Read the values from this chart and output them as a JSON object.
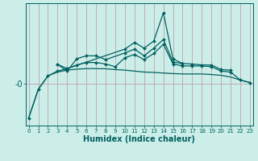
{
  "xlabel": "Humidex (Indice chaleur)",
  "bg_color": "#cceee8",
  "line_color": "#006060",
  "grid_color_v": "#c0a0b0",
  "grid_color_h": "#c0a0b0",
  "x": [
    0,
    1,
    2,
    3,
    4,
    5,
    6,
    7,
    8,
    9,
    10,
    11,
    12,
    13,
    14,
    15,
    16,
    17,
    18,
    19,
    20,
    21,
    22,
    23
  ],
  "line1": [
    -1.8,
    -0.3,
    0.4,
    0.6,
    0.7,
    0.75,
    0.78,
    0.78,
    0.77,
    0.73,
    0.7,
    0.65,
    0.6,
    0.58,
    0.55,
    0.52,
    0.5,
    0.5,
    0.5,
    0.47,
    0.43,
    0.34,
    0.18,
    0.05
  ],
  "line2_x": [
    3,
    4,
    5,
    6,
    7,
    8,
    10,
    11,
    12,
    13,
    14,
    15,
    16,
    17,
    18,
    19,
    20,
    21
  ],
  "line2_y": [
    1.0,
    0.65,
    1.3,
    1.45,
    1.45,
    1.25,
    1.6,
    1.8,
    1.45,
    1.85,
    2.3,
    1.12,
    1.05,
    1.02,
    0.97,
    0.97,
    0.73,
    0.7
  ],
  "line3_x": [
    3,
    4,
    10,
    11,
    12,
    13,
    14,
    15,
    16
  ],
  "line3_y": [
    1.0,
    0.78,
    1.8,
    2.15,
    1.85,
    2.22,
    3.7,
    1.28,
    1.05
  ],
  "line4": [
    -1.8,
    -0.3,
    0.4,
    0.65,
    0.78,
    0.97,
    1.1,
    1.1,
    1.02,
    0.88,
    1.35,
    1.52,
    1.25,
    1.57,
    2.05,
    1.02,
    0.92,
    0.92,
    0.92,
    0.88,
    0.65,
    0.6,
    0.18,
    0.05
  ],
  "ylim": [
    -2.2,
    4.2
  ],
  "xlim": [
    -0.3,
    23.3
  ],
  "ytick_pos": 0.0,
  "ytick_label": "-0"
}
